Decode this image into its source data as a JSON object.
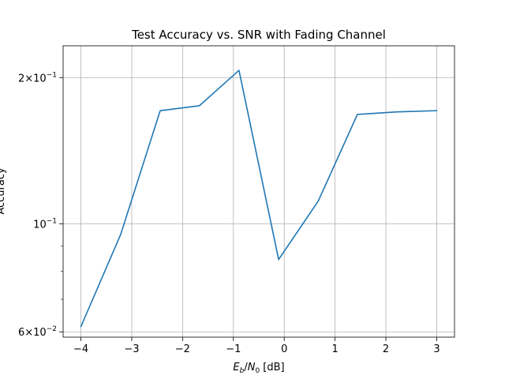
{
  "chart_data": {
    "type": "line",
    "title": "Test Accuracy vs. SNR with Fading Channel",
    "xlabel": "E_b/N_0 [dB]",
    "xlabel_parts": {
      "main1": "E",
      "sub1": "b",
      "slash": "/",
      "main2": "N",
      "sub2": "0",
      "unit": " [dB]"
    },
    "ylabel": "Accuracy",
    "xlim": [
      -4.35,
      3.35
    ],
    "ylim": [
      0.0585,
      0.2325
    ],
    "yscale": "log",
    "grid": true,
    "color": "#1f77b4",
    "x_ticks": [
      -4,
      -3,
      -2,
      -1,
      0,
      1,
      2,
      3
    ],
    "x_tick_labels": [
      "−4",
      "−3",
      "−2",
      "−1",
      "0",
      "1",
      "2",
      "3"
    ],
    "y_major_ticks": [
      0.06,
      0.1,
      0.2
    ],
    "y_major_labels": [
      {
        "base": "6×10",
        "exp": "−2"
      },
      {
        "base": "10",
        "exp": "−1"
      },
      {
        "base": "2×10",
        "exp": "−1"
      }
    ],
    "y_minor_ticks": [
      0.07,
      0.08,
      0.09
    ],
    "series": [
      {
        "x": [
          -4.0,
          -3.22,
          -2.44,
          -1.67,
          -0.89,
          -0.11,
          0.67,
          1.44,
          2.22,
          3.0
        ],
        "y": [
          0.0615,
          0.095,
          0.171,
          0.175,
          0.207,
          0.0845,
          0.1115,
          0.168,
          0.17,
          0.171
        ]
      }
    ]
  }
}
